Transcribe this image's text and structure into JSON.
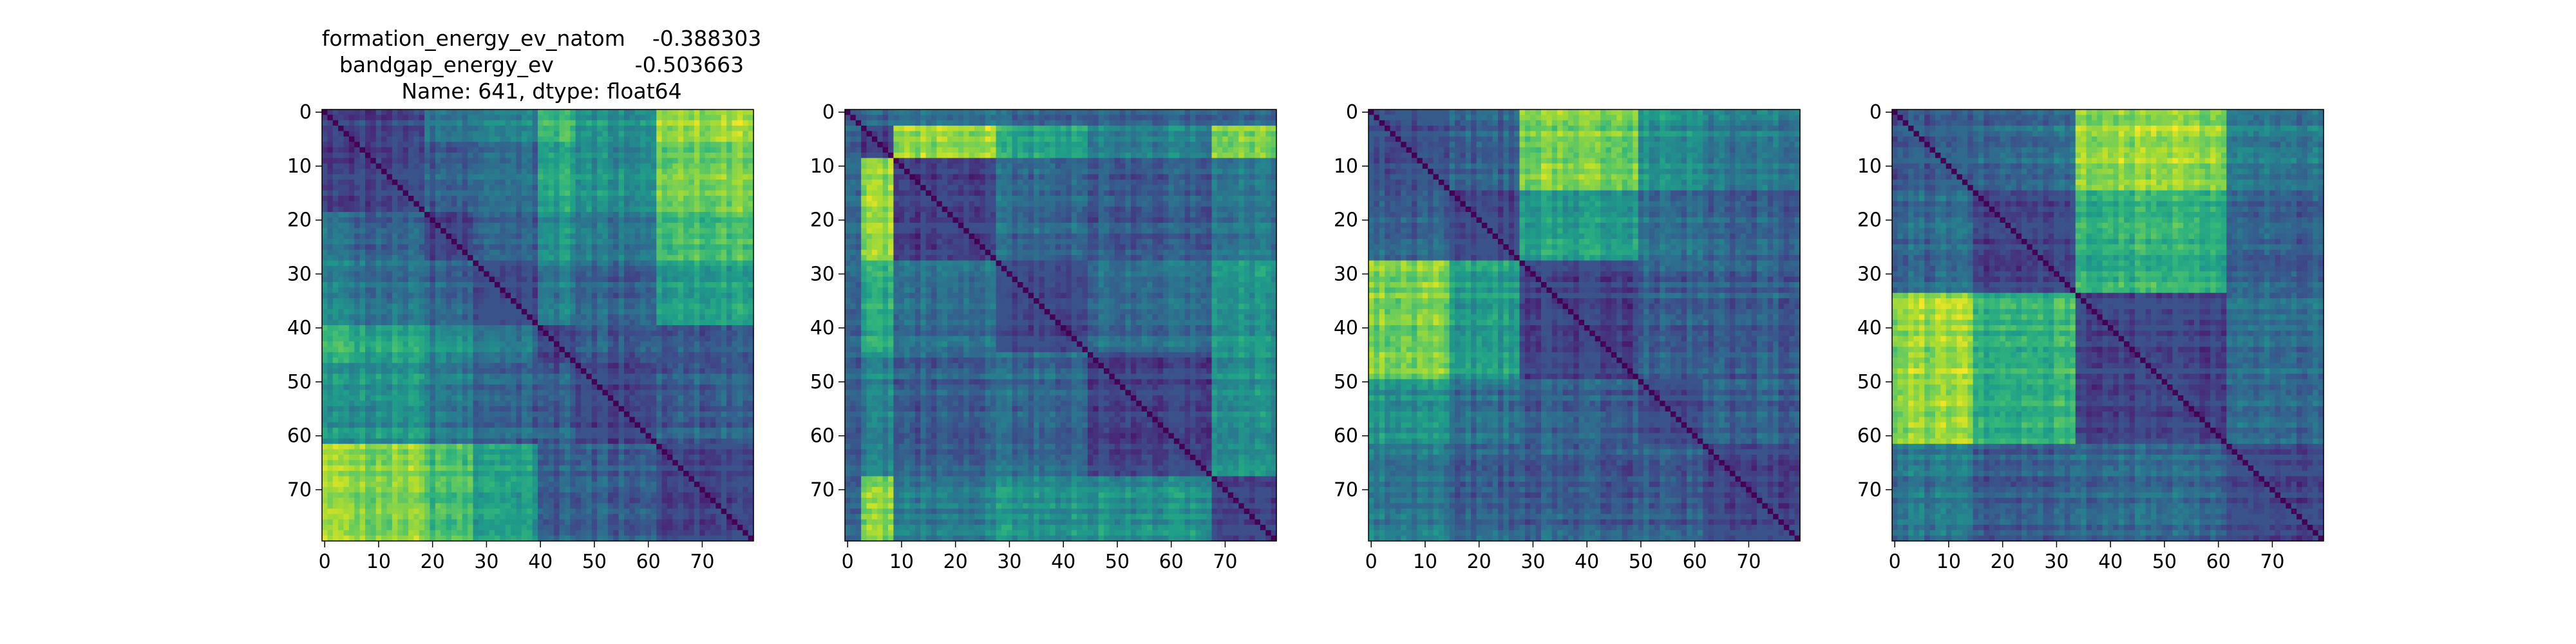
{
  "figure": {
    "title_lines": [
      "formation_energy_ev_natom    -0.388303",
      "bandgap_energy_ev            -0.503663",
      "Name: 641, dtype: float64"
    ]
  },
  "chart_data": [
    {
      "type": "heatmap",
      "colormap": "viridis",
      "matrix_size": 80,
      "xlim": [
        -0.5,
        79.5
      ],
      "ylim": [
        79.5,
        -0.5
      ],
      "xticks": [
        0,
        10,
        20,
        30,
        40,
        50,
        60,
        70
      ],
      "yticks": [
        0,
        10,
        20,
        30,
        40,
        50,
        60,
        70
      ],
      "block_boundaries": [
        0,
        6,
        19,
        28,
        40,
        47,
        62,
        80
      ],
      "block_means": [
        [
          0.22,
          0.2,
          0.4,
          0.45,
          0.7,
          0.52,
          0.88
        ],
        [
          0.2,
          0.22,
          0.3,
          0.35,
          0.6,
          0.5,
          0.8
        ],
        [
          0.4,
          0.3,
          0.2,
          0.3,
          0.5,
          0.4,
          0.7
        ],
        [
          0.45,
          0.35,
          0.3,
          0.22,
          0.4,
          0.3,
          0.55
        ],
        [
          0.7,
          0.6,
          0.5,
          0.4,
          0.22,
          0.3,
          0.3
        ],
        [
          0.52,
          0.5,
          0.4,
          0.3,
          0.3,
          0.22,
          0.3
        ],
        [
          0.88,
          0.8,
          0.7,
          0.55,
          0.3,
          0.3,
          0.22
        ]
      ]
    },
    {
      "type": "heatmap",
      "colormap": "viridis",
      "matrix_size": 80,
      "xlim": [
        -0.5,
        79.5
      ],
      "ylim": [
        79.5,
        -0.5
      ],
      "xticks": [
        0,
        10,
        20,
        30,
        40,
        50,
        60,
        70
      ],
      "yticks": [
        0,
        10,
        20,
        30,
        40,
        50,
        60,
        70
      ],
      "block_boundaries": [
        0,
        3,
        9,
        28,
        45,
        68,
        80
      ],
      "block_means": [
        [
          0.25,
          0.3,
          0.35,
          0.3,
          0.3,
          0.3
        ],
        [
          0.3,
          0.2,
          0.85,
          0.6,
          0.45,
          0.8
        ],
        [
          0.35,
          0.85,
          0.2,
          0.35,
          0.3,
          0.4
        ],
        [
          0.3,
          0.6,
          0.35,
          0.22,
          0.35,
          0.5
        ],
        [
          0.3,
          0.45,
          0.3,
          0.35,
          0.22,
          0.5
        ],
        [
          0.3,
          0.8,
          0.4,
          0.5,
          0.5,
          0.2
        ]
      ]
    },
    {
      "type": "heatmap",
      "colormap": "viridis",
      "matrix_size": 80,
      "xlim": [
        -0.5,
        79.5
      ],
      "ylim": [
        79.5,
        -0.5
      ],
      "xticks": [
        0,
        10,
        20,
        30,
        40,
        50,
        60,
        70
      ],
      "yticks": [
        0,
        10,
        20,
        30,
        40,
        50,
        60,
        70
      ],
      "block_boundaries": [
        0,
        15,
        28,
        50,
        62,
        80
      ],
      "block_means": [
        [
          0.25,
          0.3,
          0.8,
          0.5,
          0.4
        ],
        [
          0.3,
          0.22,
          0.55,
          0.35,
          0.3
        ],
        [
          0.8,
          0.55,
          0.22,
          0.3,
          0.3
        ],
        [
          0.5,
          0.35,
          0.3,
          0.22,
          0.3
        ],
        [
          0.4,
          0.3,
          0.3,
          0.3,
          0.22
        ]
      ]
    },
    {
      "type": "heatmap",
      "colormap": "viridis",
      "matrix_size": 80,
      "xlim": [
        -0.5,
        79.5
      ],
      "ylim": [
        79.5,
        -0.5
      ],
      "xticks": [
        0,
        10,
        20,
        30,
        40,
        50,
        60,
        70
      ],
      "yticks": [
        0,
        10,
        20,
        30,
        40,
        50,
        60,
        70
      ],
      "block_boundaries": [
        0,
        15,
        34,
        62,
        80
      ],
      "block_means": [
        [
          0.3,
          0.35,
          0.85,
          0.4
        ],
        [
          0.35,
          0.22,
          0.65,
          0.3
        ],
        [
          0.85,
          0.65,
          0.22,
          0.35
        ],
        [
          0.4,
          0.3,
          0.35,
          0.22
        ]
      ]
    }
  ]
}
